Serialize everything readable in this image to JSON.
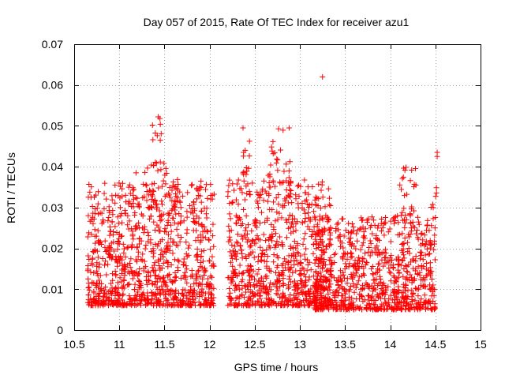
{
  "chart_data": {
    "type": "scatter",
    "title": "Day 057 of 2015, Rate Of TEC Index for receiver azu1",
    "xlabel": "GPS time / hours",
    "ylabel": "ROTI / TECUs",
    "xlim": [
      10.5,
      15
    ],
    "ylim": [
      0,
      0.07
    ],
    "xticks": [
      "10.5",
      "11",
      "11.5",
      "12",
      "12.5",
      "13",
      "13.5",
      "14",
      "14.5",
      "15"
    ],
    "yticks": [
      "0",
      "0.01",
      "0.02",
      "0.03",
      "0.04",
      "0.05",
      "0.06",
      "0.07"
    ],
    "grid": true,
    "marker": "+",
    "color": "#ff0000",
    "series": [
      {
        "name": "azu1",
        "clusters": [
          {
            "x0": 10.65,
            "x1": 12.05,
            "ymin": 0.006,
            "ymax": 0.036,
            "n": 1000
          },
          {
            "x0": 11.35,
            "x1": 11.5,
            "ymin": 0.04,
            "ymax": 0.052,
            "n": 14
          },
          {
            "x0": 11.05,
            "x1": 11.95,
            "ymin": 0.03,
            "ymax": 0.04,
            "n": 40
          },
          {
            "x0": 12.2,
            "x1": 13.35,
            "ymin": 0.006,
            "ymax": 0.037,
            "n": 800
          },
          {
            "x0": 12.35,
            "x1": 12.45,
            "ymin": 0.038,
            "ymax": 0.05,
            "n": 12
          },
          {
            "x0": 12.65,
            "x1": 12.9,
            "ymin": 0.036,
            "ymax": 0.05,
            "n": 30
          },
          {
            "x0": 13.15,
            "x1": 14.5,
            "ymin": 0.005,
            "ymax": 0.028,
            "n": 850
          },
          {
            "x0": 14.1,
            "x1": 14.3,
            "ymin": 0.028,
            "ymax": 0.04,
            "n": 25
          },
          {
            "x0": 14.45,
            "x1": 14.52,
            "ymin": 0.03,
            "ymax": 0.043,
            "n": 6
          }
        ],
        "points": [
          {
            "x": 13.25,
            "y": 0.062
          },
          {
            "x": 14.52,
            "y": 0.0435
          },
          {
            "x": 14.52,
            "y": 0.0425
          },
          {
            "x": 12.03,
            "y": 0.033
          },
          {
            "x": 12.22,
            "y": 0.031
          },
          {
            "x": 11.43,
            "y": 0.0522
          },
          {
            "x": 11.45,
            "y": 0.0518
          },
          {
            "x": 12.37,
            "y": 0.0495
          },
          {
            "x": 12.88,
            "y": 0.0495
          }
        ]
      }
    ]
  }
}
